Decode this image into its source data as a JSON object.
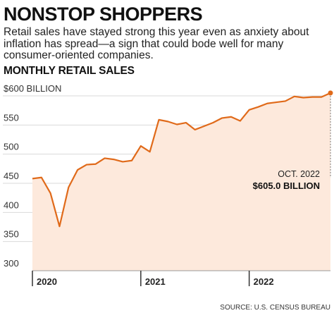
{
  "headline": "NONSTOP SHOPPERS",
  "dek": "Retail sales have stayed strong this year even as anxiety about inflation has spread—a sign that could bode well for many consumer-oriented companies.",
  "source": "SOURCE: U.S. CENSUS BUREAU",
  "colors": {
    "line": "#e06a1a",
    "fill": "#fde9dc",
    "grid": "#d9d9d9"
  },
  "chart_data": {
    "type": "area",
    "title": "MONTHLY RETAIL SALES",
    "xlabel": "",
    "ylabel": "",
    "unit": "$ billion",
    "ylim": [
      300,
      610
    ],
    "y_ticks": [
      {
        "value": 600,
        "label": "$600 BILLION"
      },
      {
        "value": 550,
        "label": "550"
      },
      {
        "value": 500,
        "label": "500"
      },
      {
        "value": 450,
        "label": "450"
      },
      {
        "value": 400,
        "label": "400"
      },
      {
        "value": 350,
        "label": "350"
      },
      {
        "value": 300,
        "label": "300"
      }
    ],
    "x_ticks": [
      {
        "label": "2020",
        "index": 0
      },
      {
        "label": "2021",
        "index": 12
      },
      {
        "label": "2022",
        "index": 24
      }
    ],
    "x": [
      "2020-01",
      "2020-02",
      "2020-03",
      "2020-04",
      "2020-05",
      "2020-06",
      "2020-07",
      "2020-08",
      "2020-09",
      "2020-10",
      "2020-11",
      "2020-12",
      "2021-01",
      "2021-02",
      "2021-03",
      "2021-04",
      "2021-05",
      "2021-06",
      "2021-07",
      "2021-08",
      "2021-09",
      "2021-10",
      "2021-11",
      "2021-12",
      "2022-01",
      "2022-02",
      "2022-03",
      "2022-04",
      "2022-05",
      "2022-06",
      "2022-07",
      "2022-08",
      "2022-09",
      "2022-10"
    ],
    "values": [
      458,
      460,
      433,
      376,
      443,
      473,
      482,
      483,
      493,
      491,
      487,
      489,
      514,
      504,
      559,
      556,
      551,
      554,
      542,
      548,
      554,
      562,
      564,
      557,
      576,
      581,
      587,
      589,
      591,
      599,
      597,
      598,
      598,
      605
    ],
    "grid": true,
    "annotation": {
      "index": 33,
      "date_label": "OCT. 2022",
      "value_label": "$605.0 BILLION"
    }
  }
}
